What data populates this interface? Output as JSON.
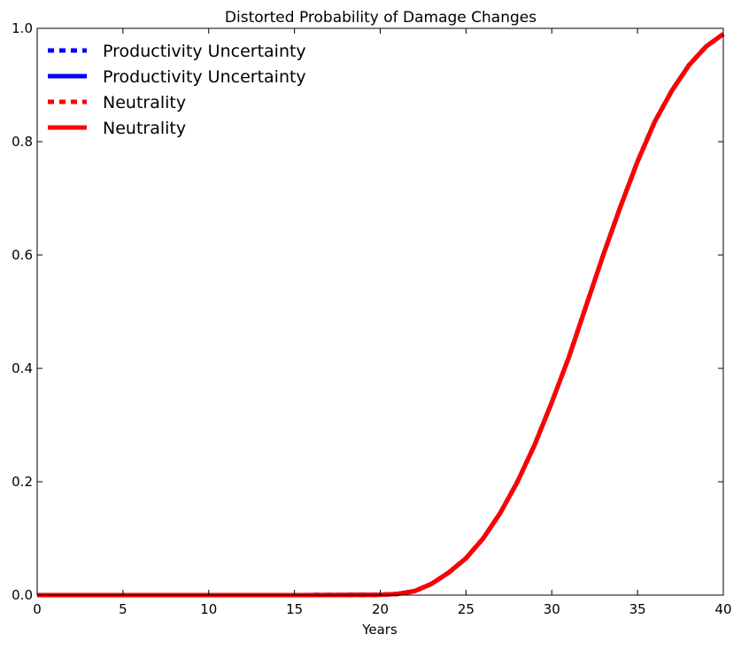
{
  "chart_data": {
    "type": "line",
    "title": "Distorted Probability of Damage Changes",
    "xlabel": "Years",
    "ylabel": "",
    "xlim": [
      0,
      40
    ],
    "ylim": [
      0,
      1.0
    ],
    "x_ticks": [
      0,
      5,
      10,
      15,
      20,
      25,
      30,
      35,
      40
    ],
    "x_tick_labels": [
      "0",
      "5",
      "10",
      "15",
      "20",
      "25",
      "30",
      "35",
      "40"
    ],
    "y_ticks": [
      0,
      0.2,
      0.4,
      0.6,
      0.8,
      1.0
    ],
    "y_tick_labels": [
      "0.0",
      "0.2",
      "0.4",
      "0.6",
      "0.8",
      "1.0"
    ],
    "grid": false,
    "legend_position": "top-left",
    "x": [
      0,
      5,
      10,
      15,
      20,
      21,
      22,
      23,
      24,
      25,
      26,
      27,
      28,
      29,
      30,
      31,
      32,
      33,
      34,
      35,
      36,
      37,
      38,
      39,
      40
    ],
    "series": [
      {
        "name": "Productivity Uncertainty",
        "color": "#0000ff",
        "line_style": "dotted",
        "values": [
          0,
          0,
          0,
          0,
          0.0005,
          0.002,
          0.007,
          0.02,
          0.04,
          0.065,
          0.1,
          0.145,
          0.2,
          0.265,
          0.34,
          0.42,
          0.51,
          0.6,
          0.685,
          0.765,
          0.835,
          0.89,
          0.935,
          0.968,
          0.99
        ]
      },
      {
        "name": "Productivity Uncertainty",
        "color": "#0000ff",
        "line_style": "solid",
        "values": [
          0,
          0,
          0,
          0,
          0.0005,
          0.002,
          0.007,
          0.02,
          0.04,
          0.065,
          0.1,
          0.145,
          0.2,
          0.265,
          0.34,
          0.42,
          0.51,
          0.6,
          0.685,
          0.765,
          0.835,
          0.89,
          0.935,
          0.968,
          0.99
        ]
      },
      {
        "name": "Neutrality",
        "color": "#ff0000",
        "line_style": "dotted",
        "values": [
          0,
          0,
          0,
          0,
          0.0005,
          0.002,
          0.007,
          0.02,
          0.04,
          0.065,
          0.1,
          0.145,
          0.2,
          0.265,
          0.34,
          0.42,
          0.51,
          0.6,
          0.685,
          0.765,
          0.835,
          0.89,
          0.935,
          0.968,
          0.99
        ]
      },
      {
        "name": "Neutrality",
        "color": "#ff0000",
        "line_style": "solid",
        "values": [
          0,
          0,
          0,
          0,
          0.0005,
          0.002,
          0.007,
          0.02,
          0.04,
          0.065,
          0.1,
          0.145,
          0.2,
          0.265,
          0.34,
          0.42,
          0.51,
          0.6,
          0.685,
          0.765,
          0.835,
          0.89,
          0.935,
          0.968,
          0.99
        ]
      }
    ]
  }
}
